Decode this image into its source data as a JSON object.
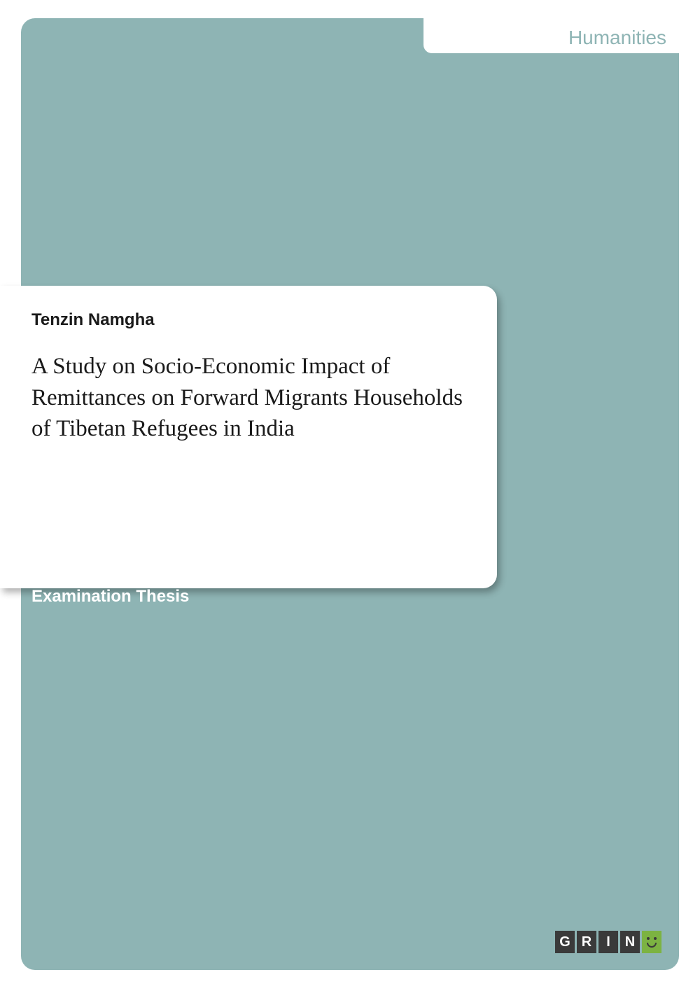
{
  "category": "Humanities",
  "author": "Tenzin Namgha",
  "title": "A Study on Socio-Economic Impact of Remittances on Forward Migrants Households of Tibetan Refugees in India",
  "thesis_type": "Examination Thesis",
  "logo": {
    "letters": [
      "G",
      "R",
      "I",
      "N"
    ]
  },
  "colors": {
    "teal": "#8eb4b4",
    "white": "#ffffff",
    "dark_text": "#1a1a1a",
    "logo_dark": "#3a3a3a",
    "logo_green": "#7cb342"
  }
}
